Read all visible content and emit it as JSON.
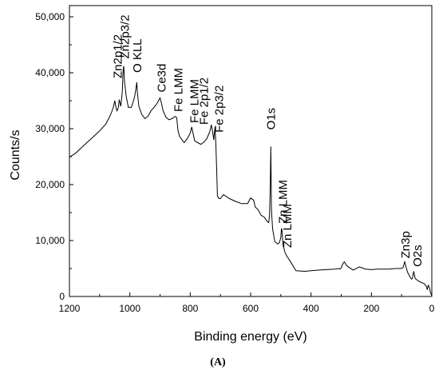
{
  "chart_data": {
    "type": "line",
    "title": "",
    "xlabel": "Binding energy (eV)",
    "ylabel": "Counts/s",
    "panel_label": "(A)",
    "xlim": [
      1200,
      0
    ],
    "ylim": [
      0,
      52000
    ],
    "x_ticks": [
      1200,
      1000,
      800,
      600,
      400,
      200,
      0
    ],
    "x_tick_labels": [
      "1200",
      "1000",
      "800",
      "600",
      "400",
      "200",
      "0"
    ],
    "y_ticks": [
      0,
      10000,
      20000,
      30000,
      40000,
      50000
    ],
    "y_tick_labels": [
      "0",
      "10,000",
      "20,000",
      "30,000",
      "40,000",
      "50,000"
    ],
    "grid": false,
    "line_color": "#000000",
    "series": [
      {
        "x": [
          1200,
          1180,
          1160,
          1140,
          1120,
          1100,
          1080,
          1070,
          1060,
          1055,
          1050,
          1045,
          1042,
          1038,
          1035,
          1030,
          1025,
          1022,
          1020,
          1018,
          1012,
          1005,
          995,
          985,
          980,
          977,
          975,
          970,
          960,
          950,
          940,
          930,
          920,
          910,
          900,
          895,
          890,
          880,
          870,
          860,
          850,
          845,
          840,
          835,
          830,
          820,
          810,
          800,
          795,
          790,
          785,
          775,
          765,
          755,
          745,
          735,
          730,
          725,
          722,
          718,
          715,
          712,
          710,
          705,
          700,
          690,
          670,
          650,
          630,
          610,
          600,
          590,
          585,
          575,
          565,
          555,
          548,
          540,
          537,
          535,
          533,
          531,
          529,
          527,
          520,
          510,
          505,
          500,
          498,
          496,
          494,
          492,
          490,
          487,
          484,
          480,
          470,
          450,
          420,
          400,
          380,
          350,
          320,
          310,
          305,
          300,
          295,
          290,
          280,
          260,
          240,
          220,
          200,
          180,
          160,
          140,
          120,
          100,
          95,
          92,
          90,
          88,
          85,
          80,
          75,
          70,
          67,
          64,
          60,
          55,
          45,
          35,
          25,
          18,
          15,
          12,
          8,
          5,
          0
        ],
        "y": [
          24900,
          25600,
          26600,
          27600,
          28600,
          29600,
          30800,
          31800,
          33000,
          33800,
          35000,
          33600,
          33200,
          33800,
          35200,
          34000,
          36500,
          40500,
          41200,
          38500,
          35800,
          33800,
          33800,
          35500,
          37000,
          38300,
          36500,
          34000,
          32500,
          31800,
          32200,
          33200,
          33800,
          34500,
          35500,
          34500,
          33200,
          32000,
          31600,
          31800,
          32200,
          32000,
          29500,
          28600,
          28200,
          27500,
          28200,
          29200,
          30300,
          29000,
          27800,
          27500,
          27200,
          27600,
          28200,
          29500,
          30700,
          29200,
          28000,
          30300,
          27000,
          22000,
          18000,
          17500,
          17500,
          18200,
          17500,
          17000,
          16600,
          16600,
          17600,
          17200,
          16000,
          15500,
          14500,
          14200,
          13600,
          13200,
          14800,
          20000,
          26800,
          15500,
          13500,
          12000,
          9800,
          9400,
          9600,
          10500,
          12200,
          11800,
          10200,
          8900,
          8700,
          8000,
          7600,
          7200,
          6400,
          4600,
          4500,
          4600,
          4700,
          4800,
          4900,
          5000,
          4900,
          5100,
          5800,
          6200,
          5400,
          4700,
          5300,
          4900,
          4800,
          4900,
          4900,
          4900,
          5000,
          5000,
          5200,
          5800,
          6200,
          5800,
          5200,
          4300,
          3800,
          3300,
          3100,
          3300,
          4500,
          3200,
          2800,
          2500,
          2300,
          1800,
          1200,
          2000,
          1600,
          800,
          100
        ]
      }
    ],
    "annotations": [
      {
        "text": "Zn2p1/2",
        "x": 1040,
        "y": 39000
      },
      {
        "text": "Zn2p3/2",
        "x": 1016,
        "y": 42500
      },
      {
        "text": "O KLL",
        "x": 975,
        "y": 40000
      },
      {
        "text": "Ce3d",
        "x": 895,
        "y": 36500
      },
      {
        "text": "Fe LMM",
        "x": 839,
        "y": 33000
      },
      {
        "text": "Fe LMM",
        "x": 787,
        "y": 31000
      },
      {
        "text": "Fe 2p1/2",
        "x": 755,
        "y": 30700
      },
      {
        "text": "Fe 2p3/2",
        "x": 705,
        "y": 29300
      },
      {
        "text": "O1s",
        "x": 533,
        "y": 29800
      },
      {
        "text": "Zn LMM",
        "x": 493,
        "y": 13000
      },
      {
        "text": "Zn LMM",
        "x": 479,
        "y": 8700
      },
      {
        "text": "Zn3p",
        "x": 87,
        "y": 6800
      },
      {
        "text": "O2s",
        "x": 48,
        "y": 5300
      }
    ]
  }
}
